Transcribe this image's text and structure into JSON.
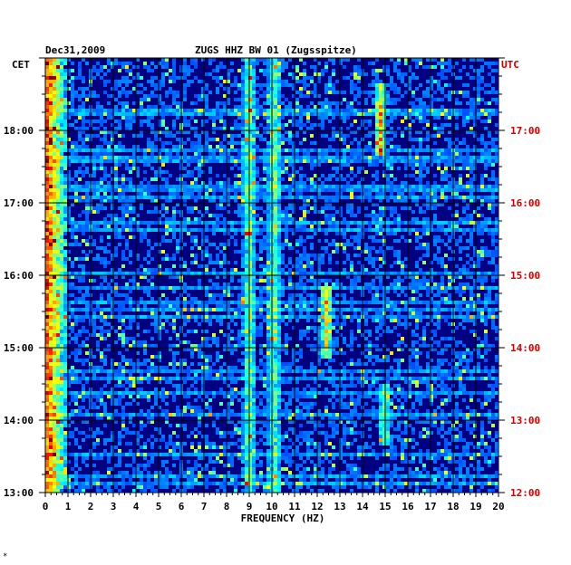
{
  "chart_data": {
    "type": "heatmap",
    "title": {
      "date": "Dec31,2009",
      "station": "ZUGS HHZ BW 01 (Zugsspitze)"
    },
    "xlabel": "FREQUENCY (HZ)",
    "x_ticks": [
      "0",
      "1",
      "2",
      "3",
      "4",
      "5",
      "6",
      "7",
      "8",
      "9",
      "10",
      "11",
      "12",
      "13",
      "14",
      "15",
      "16",
      "17",
      "18",
      "19",
      "20"
    ],
    "xlim": [
      0,
      20
    ],
    "left_axis": {
      "label": "CET",
      "ticks": [
        "18:00",
        "17:00",
        "16:00",
        "15:00",
        "14:00",
        "13:00"
      ]
    },
    "right_axis": {
      "label": "UTC",
      "ticks": [
        "17:00",
        "16:00",
        "15:00",
        "14:00",
        "13:00",
        "12:00"
      ]
    },
    "time_range_cet": [
      "13:00",
      "19:00"
    ],
    "colors": {
      "background": "#000080",
      "axis_text": "#000000",
      "utc_text": "#cc0000",
      "grid": "#000000"
    },
    "features": [
      {
        "desc": "strong low-frequency energy",
        "freq_hz": [
          0.1,
          0.6
        ],
        "intensity": "high"
      },
      {
        "desc": "line",
        "freq_hz": 9.0,
        "intensity": "medium"
      },
      {
        "desc": "line",
        "freq_hz": 10.1,
        "intensity": "medium"
      },
      {
        "desc": "band",
        "freq_hz": 12.4,
        "time_cet": [
          "14:50",
          "15:50"
        ],
        "intensity": "medium-high"
      },
      {
        "desc": "band",
        "freq_hz": 15.0,
        "time_cet": [
          "13:40",
          "14:30"
        ],
        "intensity": "medium"
      },
      {
        "desc": "burst",
        "freq_hz": 14.8,
        "time_cet": [
          "17:40",
          "18:40"
        ],
        "intensity": "high"
      }
    ]
  },
  "footnote": "*"
}
